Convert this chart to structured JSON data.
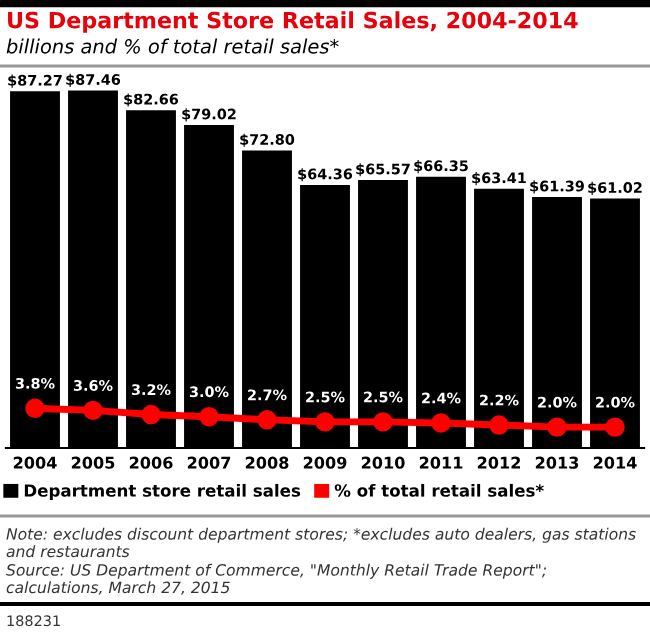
{
  "chart_data": {
    "type": "bar",
    "title": "US Department Store Retail Sales, 2004-2014",
    "subtitle": "billions and % of total retail sales*",
    "categories": [
      "2004",
      "2005",
      "2006",
      "2007",
      "2008",
      "2009",
      "2010",
      "2011",
      "2012",
      "2013",
      "2014"
    ],
    "series": [
      {
        "name": "Department store retail sales",
        "color": "#000000",
        "values": [
          87.27,
          87.46,
          82.66,
          79.02,
          72.8,
          64.36,
          65.57,
          66.35,
          63.41,
          61.39,
          61.02
        ],
        "value_labels": [
          "$87.27",
          "$87.46",
          "$82.66",
          "$79.02",
          "$72.80",
          "$64.36",
          "$65.57",
          "$66.35",
          "$63.41",
          "$61.39",
          "$61.02"
        ]
      },
      {
        "name": "% of total retail sales*",
        "type": "line",
        "axis": "y2",
        "color": "#ff0000",
        "marker": "circle",
        "values": [
          3.8,
          3.6,
          3.2,
          3.0,
          2.7,
          2.5,
          2.5,
          2.4,
          2.2,
          2.0,
          2.0
        ],
        "value_labels": [
          "3.8%",
          "3.6%",
          "3.2%",
          "3.0%",
          "2.7%",
          "2.5%",
          "2.5%",
          "2.4%",
          "2.2%",
          "2.0%",
          "2.0%"
        ]
      }
    ],
    "ylim": [
      0,
      92
    ],
    "y2lim": [
      0,
      36
    ],
    "tick_labels": "x",
    "grid": false,
    "legend": "bottom",
    "annotations": [
      "Note: excludes discount department stores; *excludes auto dealers, gas stations and restaurants",
      "Source: US Department of Commerce, \"Monthly Retail Trade Report\"; calculations, March 27, 2015",
      "188231"
    ]
  }
}
